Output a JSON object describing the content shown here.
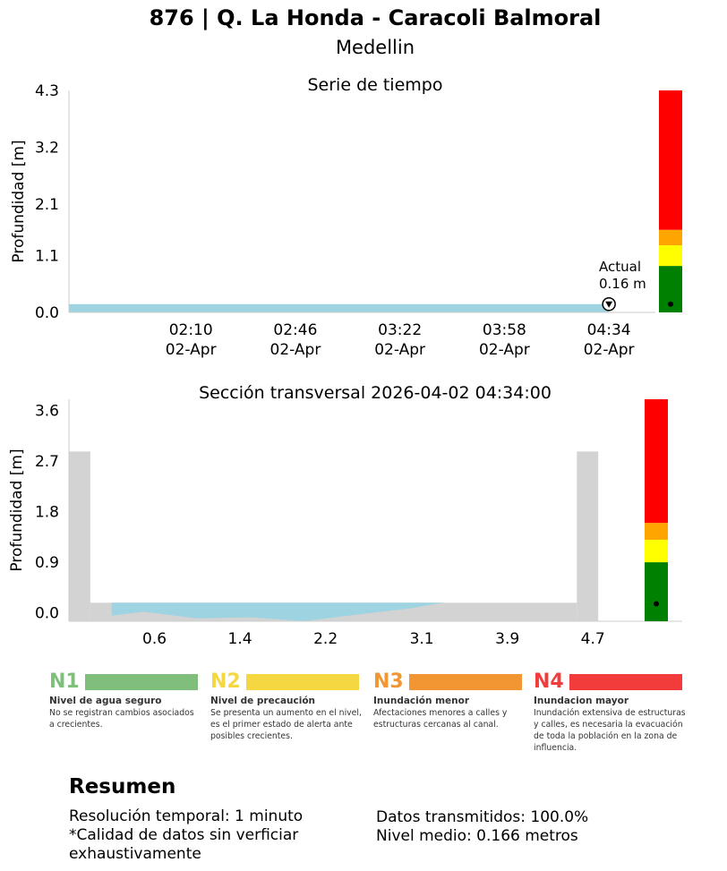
{
  "header": {
    "title": "876 | Q. La Honda - Caracoli Balmoral",
    "subtitle": "Medellin"
  },
  "chart_data": [
    {
      "type": "area",
      "title": "Serie de tiempo",
      "ylabel": "Profundidad [m]",
      "yticks": [
        "0.0",
        "1.1",
        "2.1",
        "3.2",
        "4.3"
      ],
      "ylim": [
        0,
        4.3
      ],
      "xticks": [
        {
          "time": "02:10",
          "date": "02-Apr"
        },
        {
          "time": "02:46",
          "date": "02-Apr"
        },
        {
          "time": "03:22",
          "date": "02-Apr"
        },
        {
          "time": "03:58",
          "date": "02-Apr"
        },
        {
          "time": "04:34",
          "date": "02-Apr"
        }
      ],
      "xlim": [
        "2026-04-02 01:28",
        "2026-04-02 04:50"
      ],
      "series": [
        {
          "x": [
            "2026-04-02 01:28",
            "2026-04-02 04:34"
          ],
          "y": [
            0.16,
            0.16
          ]
        }
      ],
      "current": {
        "label": "Actual",
        "value_label": "0.16 m",
        "time": "2026-04-02 04:34",
        "value": 0.16
      },
      "risk_levels": [
        {
          "color": "#008000",
          "from": 0,
          "to": 0.9
        },
        {
          "color": "#ffff00",
          "from": 0.9,
          "to": 1.3
        },
        {
          "color": "#ffa500",
          "from": 1.3,
          "to": 1.6
        },
        {
          "color": "#ff0000",
          "from": 1.6,
          "to": 4.3
        }
      ],
      "colors": {
        "water": "#9ed3e2"
      }
    },
    {
      "type": "area",
      "title": "Sección transversal 2026-04-02 04:34:00",
      "ylabel": "Profundidad [m]",
      "yticks": [
        "0.0",
        "0.9",
        "1.8",
        "2.7",
        "3.6"
      ],
      "ylim": [
        -0.15,
        3.8
      ],
      "xticks": [
        "0.6",
        "1.4",
        "2.2",
        "3.1",
        "3.9",
        "4.7"
      ],
      "xlim": [
        -0.2,
        5.05
      ],
      "channel_walls": {
        "left": [
          -0.2,
          0.0
        ],
        "right": [
          4.55,
          4.75
        ],
        "top": 2.87
      },
      "channel_floor": {
        "x": [
          0.0,
          4.55
        ],
        "y": [
          0.18,
          0.18
        ]
      },
      "bed_profile": {
        "x": [
          0.2,
          0.5,
          1.0,
          1.5,
          2.0,
          2.5,
          3.0,
          3.3
        ],
        "y": [
          -0.05,
          0.02,
          -0.1,
          -0.08,
          -0.15,
          -0.03,
          0.08,
          0.18
        ]
      },
      "water_level": 0.18,
      "current_marker": 0.16,
      "risk_levels": [
        {
          "color": "#008000",
          "from": -0.15,
          "to": 0.9
        },
        {
          "color": "#ffff00",
          "from": 0.9,
          "to": 1.3
        },
        {
          "color": "#ffa500",
          "from": 1.3,
          "to": 1.6
        },
        {
          "color": "#ff0000",
          "from": 1.6,
          "to": 3.8
        }
      ],
      "colors": {
        "water": "#9ed3e2",
        "ground": "#d3d3d3"
      }
    }
  ],
  "legend": [
    {
      "code": "N1",
      "color": "#7fbf7b",
      "name": "Nivel de agua seguro",
      "desc": "No se registran cambios asociados a crecientes."
    },
    {
      "code": "N2",
      "color": "#f5d742",
      "name": "Nivel de precaución",
      "desc": "Se presenta un aumento en el nivel, es el primer estado de alerta ante posibles crecientes."
    },
    {
      "code": "N3",
      "color": "#f29533",
      "name": "Inundación menor",
      "desc": "Afectaciones menores a calles y estructuras cercanas al canal."
    },
    {
      "code": "N4",
      "color": "#f23c3c",
      "name": "Inundacion mayor",
      "desc": "Inundación extensiva de estructuras y calles, es necesaria la evacuación de toda la población en la zona de influencia."
    }
  ],
  "summary": {
    "title": "Resumen",
    "resolution": "Resolución temporal: 1 minuto",
    "quality": "*Calidad de datos sin verficiar exhaustivamente",
    "transmitted": "Datos transmitidos: 100.0%",
    "mean_level": "Nivel medio: 0.166 metros"
  }
}
